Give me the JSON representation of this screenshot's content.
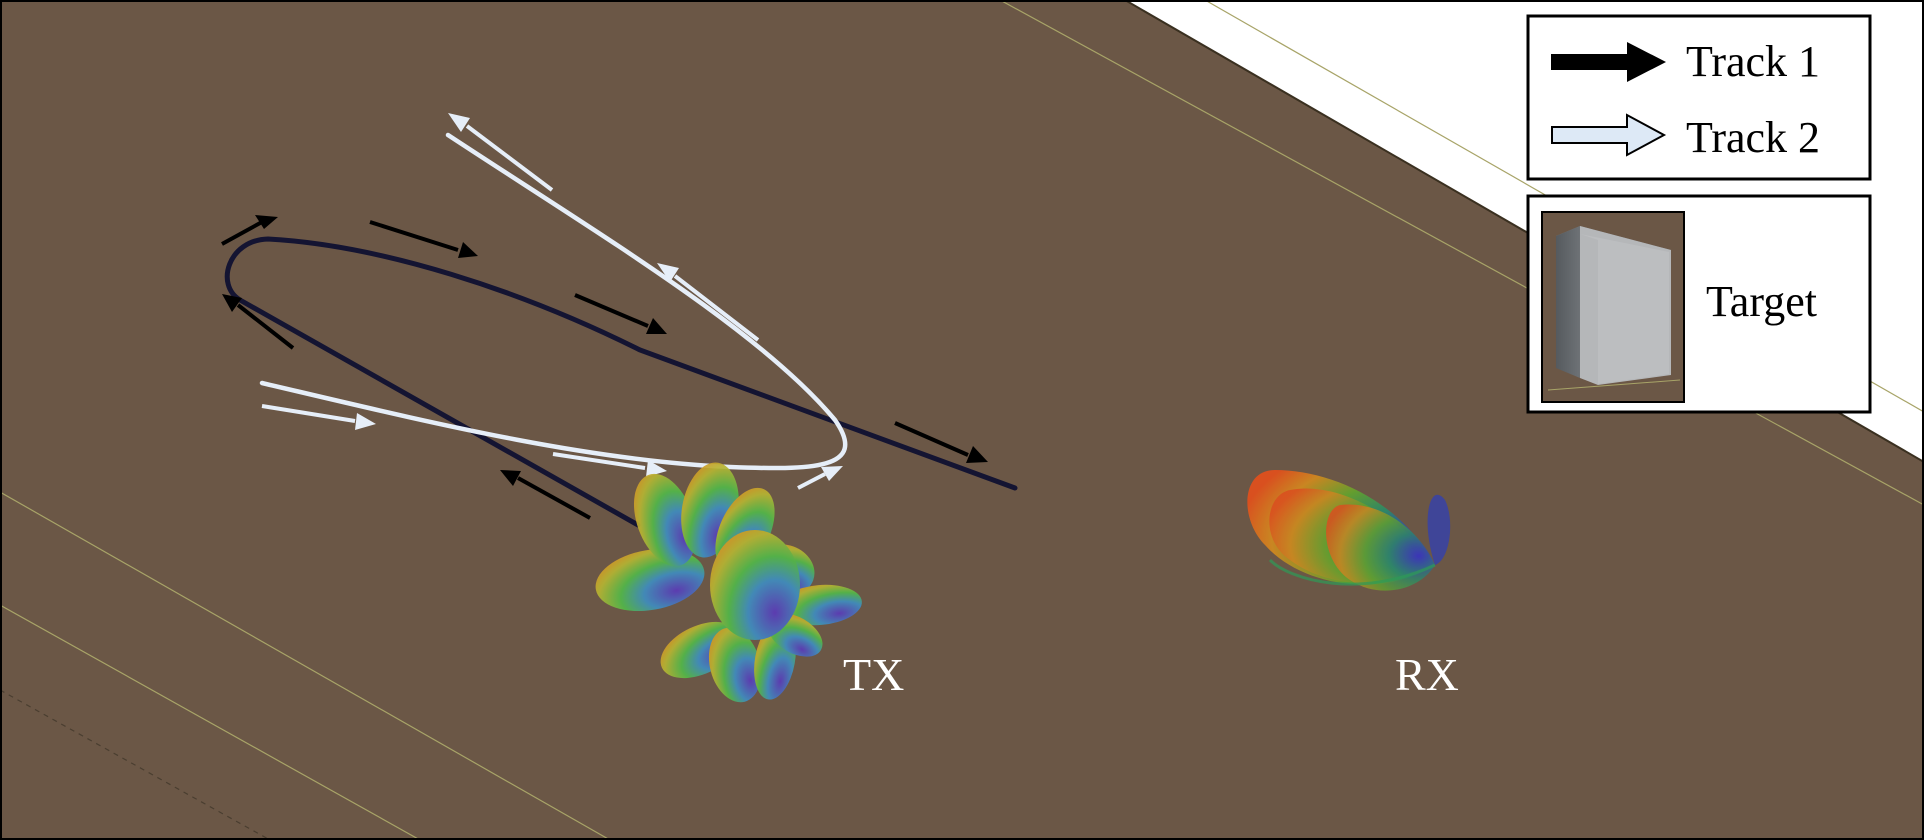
{
  "diagram": {
    "background_color": "#6b5746",
    "stations": [
      {
        "id": "tx",
        "label": "TX"
      },
      {
        "id": "rx",
        "label": "RX"
      }
    ],
    "tracks": [
      {
        "id": "track1",
        "color": "#141432",
        "arrow_color": "#000000"
      },
      {
        "id": "track2",
        "color": "#e6eef8",
        "arrow_color": "#e6eef8"
      }
    ]
  },
  "legend": {
    "items": [
      {
        "label": "Track 1",
        "icon": "black-arrow-icon"
      },
      {
        "label": "Track 2",
        "icon": "light-blue-arrow-icon"
      }
    ],
    "target": {
      "label": "Target",
      "icon": "box-target-icon"
    }
  }
}
